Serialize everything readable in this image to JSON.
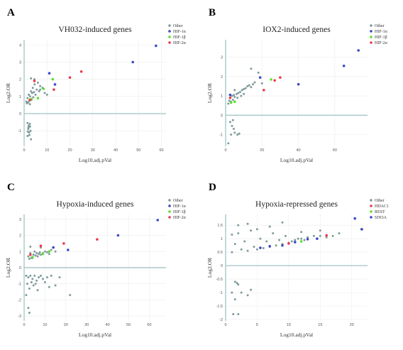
{
  "chart_data": [
    {
      "panel": "A",
      "type": "scatter",
      "title": "VH032-induced genes",
      "xlabel": "Log10.adj.pVal",
      "ylabel": "Log2.OR",
      "xlim": [
        0,
        62
      ],
      "ylim": [
        -1.9,
        4.3
      ],
      "xticks": [
        0,
        10,
        20,
        30,
        40,
        50,
        60
      ],
      "yticks": [
        -1,
        0,
        1,
        2,
        3,
        4
      ],
      "grid": true,
      "legend_position": "top-right",
      "series": [
        {
          "name": "Other",
          "color": "#7f9b9b",
          "points": [
            [
              1.2,
              0.6
            ],
            [
              1.5,
              0.9
            ],
            [
              2,
              1.1
            ],
            [
              2.3,
              0.75
            ],
            [
              2.6,
              1.0
            ],
            [
              3,
              1.3
            ],
            [
              3.2,
              0.8
            ],
            [
              3.5,
              1.2
            ],
            [
              3.8,
              1.5
            ],
            [
              4,
              0.95
            ],
            [
              4.3,
              1.25
            ],
            [
              4.6,
              1.7
            ],
            [
              5,
              1.1
            ],
            [
              5.5,
              1.4
            ],
            [
              6,
              1.8
            ],
            [
              6.5,
              1.3
            ],
            [
              7,
              1.6
            ],
            [
              8,
              1.5
            ],
            [
              9,
              1.2
            ],
            [
              10,
              1.1
            ],
            [
              3,
              2.05
            ],
            [
              4.5,
              2.0
            ],
            [
              7,
              1.4
            ],
            [
              1,
              0.7
            ],
            [
              1.8,
              0.65
            ],
            [
              2.5,
              0.55
            ],
            [
              1.5,
              -0.55
            ],
            [
              2,
              -0.7
            ],
            [
              2.5,
              -0.6
            ],
            [
              1.8,
              -0.9
            ],
            [
              2.2,
              -1.1
            ],
            [
              1.5,
              -1.3
            ],
            [
              2.8,
              -1.0
            ],
            [
              3.0,
              -1.5
            ],
            [
              2.3,
              -1.25
            ],
            [
              1.6,
              -1.05
            ],
            [
              1.9,
              -0.8
            ],
            [
              2.6,
              -0.75
            ]
          ]
        },
        {
          "name": "HIF-1α",
          "color": "#3d47c9",
          "points": [
            [
              57.6,
              3.95
            ],
            [
              47.5,
              3.0
            ],
            [
              11,
              2.35
            ],
            [
              13.5,
              1.7
            ]
          ]
        },
        {
          "name": "HIF-1β",
          "color": "#5ce02e",
          "points": [
            [
              3.2,
              0.85
            ],
            [
              6,
              0.9
            ],
            [
              12.5,
              2.0
            ],
            [
              8.5,
              1.45
            ]
          ]
        },
        {
          "name": "HIF-2α",
          "color": "#ee3a4a",
          "points": [
            [
              25,
              2.45
            ],
            [
              20,
              2.1
            ],
            [
              13,
              1.4
            ],
            [
              4.5,
              1.9
            ],
            [
              2.5,
              0.8
            ]
          ]
        }
      ]
    },
    {
      "panel": "B",
      "type": "scatter",
      "title": "IOX2-induced genes",
      "xlabel": "Log10.adj.pVal",
      "ylabel": "Log2.OR",
      "xlim": [
        0,
        78
      ],
      "ylim": [
        -1.6,
        3.9
      ],
      "xticks": [
        0,
        20,
        40,
        60
      ],
      "yticks": [
        -1,
        0,
        1,
        2,
        3
      ],
      "grid": true,
      "legend_position": "top-right",
      "series": [
        {
          "name": "Other",
          "color": "#7f9b9b",
          "points": [
            [
              1.5,
              0.6
            ],
            [
              2,
              0.75
            ],
            [
              2.5,
              0.9
            ],
            [
              3,
              0.7
            ],
            [
              3.5,
              1.0
            ],
            [
              4,
              0.8
            ],
            [
              4.5,
              1.05
            ],
            [
              5,
              0.95
            ],
            [
              6,
              1.1
            ],
            [
              7,
              1.15
            ],
            [
              8,
              1.2
            ],
            [
              9,
              1.3
            ],
            [
              10,
              1.35
            ],
            [
              11,
              1.4
            ],
            [
              12,
              1.5
            ],
            [
              13,
              1.55
            ],
            [
              14,
              1.45
            ],
            [
              15,
              1.6
            ],
            [
              16,
              1.7
            ],
            [
              14,
              2.4
            ],
            [
              18,
              2.2
            ],
            [
              20,
              1.65
            ],
            [
              5,
              1.3
            ],
            [
              6.5,
              0.9
            ],
            [
              8.5,
              1.0
            ],
            [
              10,
              1.1
            ],
            [
              2.5,
              -0.35
            ],
            [
              3.5,
              -0.55
            ],
            [
              4.5,
              -0.7
            ],
            [
              5,
              -0.9
            ],
            [
              3,
              -1.0
            ],
            [
              6.5,
              -1.0
            ],
            [
              7.5,
              -0.95
            ],
            [
              1.5,
              -1.45
            ],
            [
              4,
              -0.25
            ]
          ]
        },
        {
          "name": "HIF-1α",
          "color": "#3d47c9",
          "points": [
            [
              73,
              3.35
            ],
            [
              65,
              2.55
            ],
            [
              40,
              1.6
            ],
            [
              19,
              1.95
            ],
            [
              2.5,
              1.05
            ]
          ]
        },
        {
          "name": "HIF-1β",
          "color": "#5ce02e",
          "points": [
            [
              25,
              1.85
            ],
            [
              3,
              0.65
            ],
            [
              5,
              0.7
            ]
          ]
        },
        {
          "name": "HIF-2α",
          "color": "#ee3a4a",
          "points": [
            [
              30,
              1.95
            ],
            [
              27,
              1.8
            ],
            [
              21,
              1.3
            ],
            [
              2.5,
              0.9
            ]
          ]
        }
      ]
    },
    {
      "panel": "C",
      "type": "scatter",
      "title": "Hypoxia-induced genes",
      "xlabel": "Log10.adj.pVal",
      "ylabel": "Log2.OR",
      "xlim": [
        0,
        68
      ],
      "ylim": [
        -3.3,
        3.3
      ],
      "xticks": [
        0,
        10,
        20,
        30,
        40,
        50,
        60
      ],
      "yticks": [
        -3,
        -2,
        -1,
        0,
        1,
        2,
        3
      ],
      "grid": true,
      "legend_position": "top-right",
      "series": [
        {
          "name": "Other",
          "color": "#7f9b9b",
          "points": [
            [
              2,
              0.7
            ],
            [
              3,
              0.9
            ],
            [
              4,
              0.6
            ],
            [
              4.5,
              0.8
            ],
            [
              5,
              1.0
            ],
            [
              5.5,
              0.75
            ],
            [
              6,
              0.9
            ],
            [
              6.5,
              0.7
            ],
            [
              7,
              0.85
            ],
            [
              7.5,
              0.95
            ],
            [
              8,
              0.8
            ],
            [
              9,
              0.9
            ],
            [
              10,
              1.0
            ],
            [
              11,
              0.95
            ],
            [
              12,
              0.85
            ],
            [
              13,
              1.1
            ],
            [
              15,
              1.0
            ],
            [
              3,
              1.3
            ],
            [
              8,
              1.25
            ],
            [
              2.5,
              0.55
            ],
            [
              3.5,
              0.6
            ],
            [
              1,
              -0.5
            ],
            [
              2,
              -0.6
            ],
            [
              3,
              -0.5
            ],
            [
              4,
              -0.7
            ],
            [
              5,
              -0.5
            ],
            [
              6,
              -0.8
            ],
            [
              7,
              -0.6
            ],
            [
              8,
              -0.5
            ],
            [
              9,
              -0.7
            ],
            [
              10,
              -0.9
            ],
            [
              11,
              -0.6
            ],
            [
              12,
              -1.2
            ],
            [
              13,
              -0.5
            ],
            [
              1.5,
              -1.0
            ],
            [
              2.5,
              -1.3
            ],
            [
              3.5,
              -0.9
            ],
            [
              4.5,
              -1.1
            ],
            [
              5.5,
              -1.0
            ],
            [
              6.5,
              -1.4
            ],
            [
              22,
              -1.7
            ],
            [
              2,
              -2.5
            ],
            [
              2.5,
              -2.8
            ],
            [
              1,
              -1.7
            ],
            [
              17,
              -0.6
            ],
            [
              15,
              -1.1
            ]
          ]
        },
        {
          "name": "HIF-1α",
          "color": "#3d47c9",
          "points": [
            [
              64,
              2.95
            ],
            [
              45,
              2.0
            ],
            [
              21,
              1.1
            ],
            [
              14,
              1.25
            ]
          ]
        },
        {
          "name": "HIF-1β",
          "color": "#5ce02e",
          "points": [
            [
              12,
              1.0
            ],
            [
              4,
              0.65
            ],
            [
              9,
              0.85
            ]
          ]
        },
        {
          "name": "HIF-2α",
          "color": "#ee3a4a",
          "points": [
            [
              35,
              1.75
            ],
            [
              19,
              1.5
            ],
            [
              8,
              1.35
            ],
            [
              3,
              0.8
            ]
          ]
        }
      ]
    },
    {
      "panel": "D",
      "type": "scatter",
      "title": "Hypoxia-repressed genes",
      "xlabel": "Log10.adj.pVal",
      "ylabel": "Log2.OR",
      "xlim": [
        0,
        22.5
      ],
      "ylim": [
        -2.05,
        1.9
      ],
      "xticks": [
        0,
        5,
        10,
        15,
        20
      ],
      "yticks": [
        -2,
        -1.5,
        -1,
        -0.5,
        0,
        0.5,
        1,
        1.5
      ],
      "grid": true,
      "legend_position": "top-right",
      "series": [
        {
          "name": "Other",
          "color": "#7f9b9b",
          "points": [
            [
              1,
              0.5
            ],
            [
              1.5,
              0.8
            ],
            [
              2,
              1.2
            ],
            [
              2.5,
              0.6
            ],
            [
              3,
              0.9
            ],
            [
              3.5,
              0.55
            ],
            [
              4,
              1.3
            ],
            [
              4.5,
              0.7
            ],
            [
              5,
              0.6
            ],
            [
              5.5,
              1.0
            ],
            [
              6,
              0.65
            ],
            [
              6.5,
              0.9
            ],
            [
              7,
              0.7
            ],
            [
              7.5,
              1.2
            ],
            [
              8,
              0.75
            ],
            [
              8.5,
              0.95
            ],
            [
              9,
              0.8
            ],
            [
              9.5,
              1.1
            ],
            [
              10,
              0.85
            ],
            [
              10.5,
              0.9
            ],
            [
              11,
              0.95
            ],
            [
              11.5,
              1.0
            ],
            [
              12,
              1.0
            ],
            [
              12.5,
              0.95
            ],
            [
              13,
              1.05
            ],
            [
              14,
              1.1
            ],
            [
              15,
              1.1
            ],
            [
              16,
              1.05
            ],
            [
              17,
              1.1
            ],
            [
              18,
              1.2
            ],
            [
              2,
              1.5
            ],
            [
              3.5,
              1.55
            ],
            [
              5,
              1.35
            ],
            [
              7,
              1.45
            ],
            [
              9,
              1.6
            ],
            [
              12,
              1.25
            ],
            [
              15,
              1.3
            ],
            [
              21.5,
              1.35
            ],
            [
              1,
              1.15
            ],
            [
              1.5,
              -0.6
            ],
            [
              2,
              -0.7
            ],
            [
              1.5,
              -1.25
            ],
            [
              2,
              -1.8
            ],
            [
              1,
              -1.0
            ],
            [
              2.5,
              -1.0
            ],
            [
              3.5,
              -1.1
            ],
            [
              4,
              -0.9
            ],
            [
              1.8,
              -0.65
            ],
            [
              1.2,
              -1.8
            ]
          ]
        },
        {
          "name": "HDAC1",
          "color": "#ee3a4a",
          "points": [
            [
              10,
              0.82
            ],
            [
              16,
              1.12
            ]
          ]
        },
        {
          "name": "REST",
          "color": "#5ce02e",
          "points": [
            [
              12,
              0.9
            ]
          ]
        },
        {
          "name": "SIN3A",
          "color": "#3d47c9",
          "points": [
            [
              20.5,
              1.75
            ],
            [
              21.6,
              1.35
            ],
            [
              13,
              0.98
            ],
            [
              9,
              0.75
            ],
            [
              7,
              0.72
            ],
            [
              5.5,
              0.66
            ],
            [
              11,
              0.87
            ],
            [
              14.5,
              1.0
            ]
          ]
        }
      ]
    }
  ]
}
